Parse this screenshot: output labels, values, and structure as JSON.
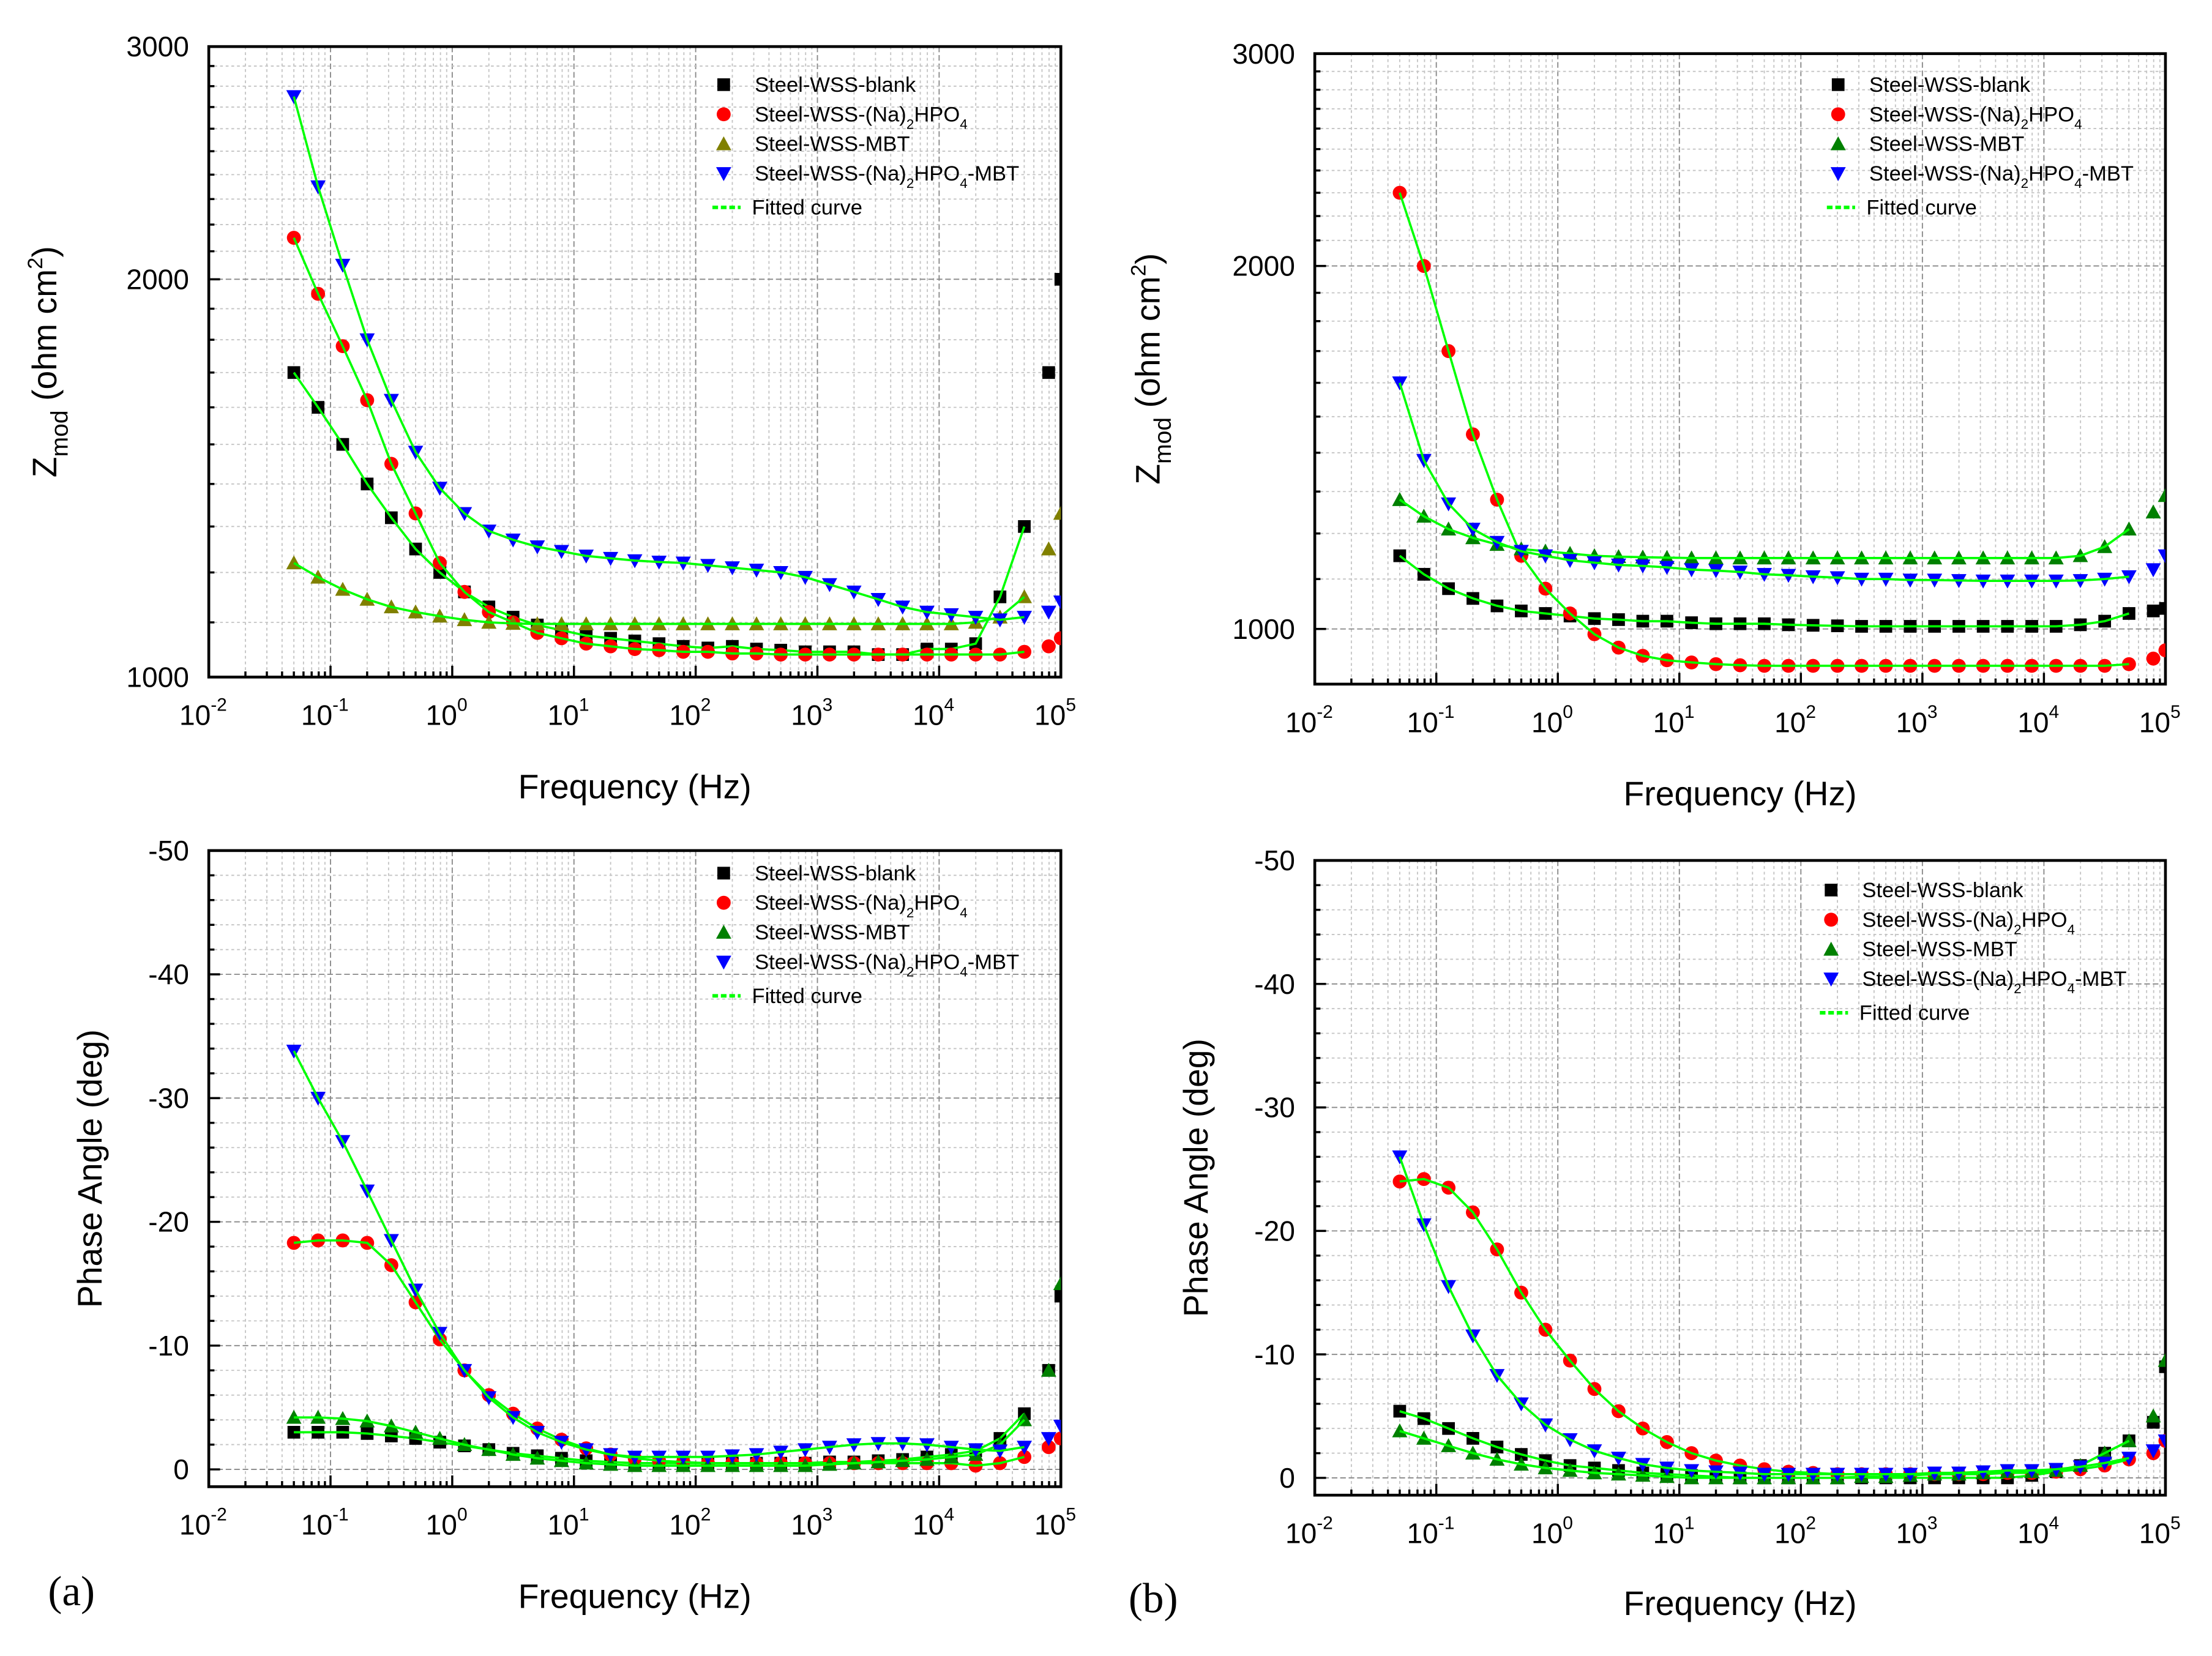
{
  "figure_labels": [
    "(a)",
    "(b)"
  ],
  "colors": {
    "blank": "#000000",
    "hpo4": "#ff0000",
    "mbt_olive": "#808000",
    "mbt_green": "#008000",
    "hpo4_mbt": "#0000ff",
    "fit": "#00ff00"
  },
  "chart_data": [
    {
      "id": "a-impedance",
      "type": "scatter",
      "xscale": "log",
      "yscale": "log",
      "xlabel": "Frequency (Hz)",
      "ylabel_parts": [
        "Z",
        "mod",
        " (ohm cm",
        "2",
        ")"
      ],
      "xlim": [
        0.01,
        100000
      ],
      "ylim": [
        1000,
        3000
      ],
      "xtick_exponents": [
        "-2",
        "-1",
        "0",
        "1",
        "2",
        "3",
        "4",
        "5"
      ],
      "ytick_labels": [
        "1000",
        "2000",
        "3000"
      ],
      "grid": true,
      "legend": "top-right",
      "x": [
        0.05,
        0.079,
        0.126,
        0.2,
        0.316,
        0.5,
        0.79,
        1.26,
        2,
        3.16,
        5,
        7.9,
        12.6,
        20,
        31.6,
        50,
        79,
        126,
        200,
        316,
        500,
        794,
        1259,
        1995,
        3162,
        5012,
        7943,
        12589,
        19953,
        31623,
        50119,
        79433,
        100000
      ],
      "series": [
        {
          "name": "Steel-WSS-blank",
          "marker": "square",
          "color": "#000000",
          "values": [
            1700,
            1600,
            1500,
            1400,
            1320,
            1250,
            1200,
            1160,
            1130,
            1110,
            1095,
            1085,
            1075,
            1070,
            1065,
            1060,
            1055,
            1052,
            1055,
            1050,
            1048,
            1045,
            1045,
            1045,
            1040,
            1040,
            1050,
            1050,
            1060,
            1150,
            1300,
            1700,
            2000
          ]
        },
        {
          "name": "Steel-WSS-(Na)2HPO4",
          "marker": "circle",
          "color": "#ff0000",
          "values": [
            2150,
            1950,
            1780,
            1620,
            1450,
            1330,
            1220,
            1160,
            1120,
            1100,
            1080,
            1070,
            1060,
            1055,
            1050,
            1048,
            1045,
            1045,
            1042,
            1042,
            1040,
            1040,
            1040,
            1040,
            1040,
            1040,
            1040,
            1040,
            1040,
            1040,
            1045,
            1055,
            1070
          ]
        },
        {
          "name": "Steel-WSS-MBT",
          "marker": "triangle-up",
          "color": "#808000",
          "values": [
            1220,
            1190,
            1165,
            1145,
            1130,
            1120,
            1112,
            1105,
            1100,
            1098,
            1097,
            1097,
            1097,
            1097,
            1097,
            1097,
            1097,
            1097,
            1097,
            1097,
            1097,
            1097,
            1097,
            1097,
            1097,
            1097,
            1097,
            1097,
            1100,
            1110,
            1150,
            1250,
            1330
          ]
        },
        {
          "name": "Steel-WSS-(Na)2HPO4-MBT",
          "marker": "triangle-down",
          "color": "#0000ff",
          "values": [
            2750,
            2350,
            2050,
            1800,
            1620,
            1480,
            1390,
            1330,
            1290,
            1270,
            1255,
            1245,
            1235,
            1230,
            1225,
            1222,
            1220,
            1215,
            1210,
            1205,
            1200,
            1190,
            1175,
            1160,
            1145,
            1130,
            1120,
            1115,
            1110,
            1105,
            1110,
            1120,
            1140
          ]
        }
      ],
      "fit_label": "Fitted curve"
    },
    {
      "id": "b-impedance",
      "type": "scatter",
      "xscale": "log",
      "yscale": "log",
      "xlabel": "Frequency (Hz)",
      "ylabel_parts": [
        "Z",
        "mod",
        " (ohm cm",
        "2",
        ")"
      ],
      "xlim": [
        0.01,
        100000
      ],
      "ylim": [
        900,
        3000
      ],
      "xtick_exponents": [
        "-2",
        "-1",
        "0",
        "1",
        "2",
        "3",
        "4",
        "5"
      ],
      "ytick_labels": [
        "1000",
        "2000",
        "3000"
      ],
      "grid": true,
      "legend": "top-right",
      "x": [
        0.05,
        0.079,
        0.126,
        0.2,
        0.316,
        0.5,
        0.79,
        1.26,
        2,
        3.16,
        5,
        7.9,
        12.6,
        20,
        31.6,
        50,
        79,
        126,
        200,
        316,
        500,
        794,
        1259,
        1995,
        3162,
        5012,
        7943,
        12589,
        19953,
        31623,
        50119,
        79433,
        100000
      ],
      "series": [
        {
          "name": "Steel-WSS-blank",
          "marker": "square",
          "color": "#000000",
          "values": [
            1150,
            1110,
            1080,
            1060,
            1045,
            1035,
            1030,
            1025,
            1020,
            1018,
            1015,
            1015,
            1012,
            1010,
            1010,
            1010,
            1008,
            1007,
            1006,
            1005,
            1005,
            1005,
            1005,
            1005,
            1005,
            1005,
            1005,
            1005,
            1008,
            1015,
            1030,
            1035,
            1040
          ]
        },
        {
          "name": "Steel-WSS-(Na)2HPO4",
          "marker": "circle",
          "color": "#ff0000",
          "values": [
            2300,
            2000,
            1700,
            1450,
            1280,
            1150,
            1080,
            1030,
            990,
            965,
            950,
            942,
            938,
            935,
            933,
            932,
            932,
            932,
            932,
            932,
            932,
            932,
            932,
            932,
            932,
            932,
            932,
            932,
            932,
            932,
            935,
            945,
            960
          ]
        },
        {
          "name": "Steel-WSS-MBT",
          "marker": "triangle-up",
          "color": "#008000",
          "values": [
            1280,
            1240,
            1210,
            1190,
            1175,
            1165,
            1160,
            1155,
            1150,
            1148,
            1147,
            1146,
            1145,
            1145,
            1145,
            1145,
            1145,
            1145,
            1145,
            1145,
            1145,
            1145,
            1145,
            1145,
            1145,
            1145,
            1145,
            1145,
            1150,
            1170,
            1210,
            1250,
            1290
          ]
        },
        {
          "name": "Steel-WSS-(Na)2HPO4-MBT",
          "marker": "triangle-down",
          "color": "#0000ff",
          "values": [
            1600,
            1380,
            1270,
            1210,
            1180,
            1160,
            1150,
            1140,
            1135,
            1130,
            1128,
            1125,
            1120,
            1118,
            1115,
            1110,
            1108,
            1105,
            1103,
            1100,
            1100,
            1098,
            1098,
            1097,
            1096,
            1096,
            1096,
            1096,
            1097,
            1100,
            1105,
            1120,
            1150
          ]
        }
      ],
      "fit_label": "Fitted curve"
    },
    {
      "id": "a-phase",
      "type": "scatter",
      "xscale": "log",
      "yscale": "linear",
      "xlabel": "Frequency (Hz)",
      "ylabel_parts": [
        "Phase Angle (deg)"
      ],
      "xlim": [
        0.01,
        100000
      ],
      "ylim": [
        1.4,
        -50
      ],
      "xtick_exponents": [
        "-2",
        "-1",
        "0",
        "1",
        "2",
        "3",
        "4",
        "5"
      ],
      "ytick_labels": [
        "0",
        "-10",
        "-20",
        "-30",
        "-40",
        "-50"
      ],
      "grid": true,
      "legend": "top-right",
      "x": [
        0.05,
        0.079,
        0.126,
        0.2,
        0.316,
        0.5,
        0.79,
        1.26,
        2,
        3.16,
        5,
        7.9,
        12.6,
        20,
        31.6,
        50,
        79,
        126,
        200,
        316,
        500,
        794,
        1259,
        1995,
        3162,
        5012,
        7943,
        12589,
        19953,
        31623,
        50119,
        79433,
        100000
      ],
      "series": [
        {
          "name": "Steel-WSS-blank",
          "marker": "square",
          "color": "#000000",
          "values": [
            -3,
            -3,
            -3,
            -2.9,
            -2.7,
            -2.5,
            -2.2,
            -1.9,
            -1.6,
            -1.3,
            -1.1,
            -0.9,
            -0.7,
            -0.6,
            -0.5,
            -0.5,
            -0.5,
            -0.5,
            -0.5,
            -0.5,
            -0.5,
            -0.5,
            -0.6,
            -0.6,
            -0.7,
            -0.8,
            -1,
            -1.2,
            -1.5,
            -2.5,
            -4.5,
            -8,
            -14
          ]
        },
        {
          "name": "Steel-WSS-(Na)2HPO4",
          "marker": "circle",
          "color": "#ff0000",
          "values": [
            -18.3,
            -18.5,
            -18.5,
            -18.3,
            -16.5,
            -13.5,
            -10.5,
            -8,
            -6,
            -4.5,
            -3.3,
            -2.4,
            -1.7,
            -1.2,
            -0.9,
            -0.7,
            -0.6,
            -0.5,
            -0.5,
            -0.5,
            -0.5,
            -0.5,
            -0.5,
            -0.5,
            -0.5,
            -0.5,
            -0.5,
            -0.5,
            -0.3,
            -0.5,
            -1,
            -1.8,
            -2.5
          ]
        },
        {
          "name": "Steel-WSS-MBT",
          "marker": "triangle-up",
          "color": "#008000",
          "values": [
            -4.2,
            -4.2,
            -4.1,
            -3.9,
            -3.5,
            -3,
            -2.5,
            -2,
            -1.6,
            -1.2,
            -0.9,
            -0.7,
            -0.5,
            -0.4,
            -0.3,
            -0.3,
            -0.3,
            -0.3,
            -0.3,
            -0.3,
            -0.3,
            -0.3,
            -0.4,
            -0.5,
            -0.6,
            -0.7,
            -0.8,
            -1,
            -1.2,
            -2,
            -4,
            -8,
            -15
          ]
        },
        {
          "name": "Steel-WSS-(Na)2HPO4-MBT",
          "marker": "triangle-down",
          "color": "#0000ff",
          "values": [
            -33.8,
            -30,
            -26.5,
            -22.5,
            -18.5,
            -14.5,
            -11,
            -8,
            -5.8,
            -4.2,
            -3,
            -2.2,
            -1.6,
            -1.2,
            -1,
            -1,
            -1,
            -1,
            -1.1,
            -1.2,
            -1.4,
            -1.6,
            -1.8,
            -2,
            -2.1,
            -2.1,
            -2,
            -1.8,
            -1.6,
            -1.5,
            -1.8,
            -2.5,
            -3.5
          ]
        }
      ],
      "fit_label": "Fitted curve"
    },
    {
      "id": "b-phase",
      "type": "scatter",
      "xscale": "log",
      "yscale": "linear",
      "xlabel": "Frequency (Hz)",
      "ylabel_parts": [
        "Phase Angle (deg)"
      ],
      "xlim": [
        0.01,
        100000
      ],
      "ylim": [
        1.4,
        -50
      ],
      "xtick_exponents": [
        "-2",
        "-1",
        "0",
        "1",
        "2",
        "3",
        "4",
        "5"
      ],
      "ytick_labels": [
        "0",
        "-10",
        "-20",
        "-30",
        "-40",
        "-50"
      ],
      "grid": true,
      "legend": "top-right",
      "x": [
        0.05,
        0.079,
        0.126,
        0.2,
        0.316,
        0.5,
        0.79,
        1.26,
        2,
        3.16,
        5,
        7.9,
        12.6,
        20,
        31.6,
        50,
        79,
        126,
        200,
        316,
        500,
        794,
        1259,
        1995,
        3162,
        5012,
        7943,
        12589,
        19953,
        31623,
        50119,
        79433,
        100000
      ],
      "series": [
        {
          "name": "Steel-WSS-blank",
          "marker": "square",
          "color": "#000000",
          "values": [
            -5.4,
            -4.8,
            -4,
            -3.2,
            -2.5,
            -1.9,
            -1.4,
            -1,
            -0.8,
            -0.6,
            -0.4,
            -0.3,
            -0.2,
            -0.1,
            0,
            0,
            0,
            0,
            0,
            0,
            0,
            0,
            0,
            0,
            0,
            0,
            -0.2,
            -0.5,
            -1,
            -2,
            -3,
            -4.5,
            -9
          ]
        },
        {
          "name": "Steel-WSS-(Na)2HPO4",
          "marker": "circle",
          "color": "#ff0000",
          "values": [
            -24,
            -24.2,
            -23.5,
            -21.5,
            -18.5,
            -15,
            -12,
            -9.5,
            -7.2,
            -5.4,
            -4,
            -2.9,
            -2,
            -1.4,
            -1,
            -0.7,
            -0.5,
            -0.4,
            -0.3,
            -0.3,
            -0.3,
            -0.3,
            -0.3,
            -0.3,
            -0.3,
            -0.4,
            -0.4,
            -0.5,
            -0.7,
            -1,
            -1.5,
            -2,
            -3
          ]
        },
        {
          "name": "Steel-WSS-MBT",
          "marker": "triangle-up",
          "color": "#008000",
          "values": [
            -3.8,
            -3.2,
            -2.6,
            -2,
            -1.5,
            -1.1,
            -0.8,
            -0.6,
            -0.4,
            -0.3,
            -0.2,
            -0.1,
            0,
            0,
            0,
            0,
            0,
            0,
            0,
            -0.1,
            -0.1,
            -0.2,
            -0.3,
            -0.3,
            -0.4,
            -0.5,
            -0.5,
            -0.6,
            -1,
            -2,
            -3,
            -5,
            -9.5
          ]
        },
        {
          "name": "Steel-WSS-(Na)2HPO4-MBT",
          "marker": "triangle-down",
          "color": "#0000ff",
          "values": [
            -26,
            -20.5,
            -15.5,
            -11.5,
            -8.3,
            -6,
            -4.3,
            -3.1,
            -2.2,
            -1.6,
            -1.1,
            -0.8,
            -0.6,
            -0.5,
            -0.4,
            -0.3,
            -0.3,
            -0.3,
            -0.3,
            -0.3,
            -0.3,
            -0.3,
            -0.4,
            -0.4,
            -0.5,
            -0.6,
            -0.6,
            -0.7,
            -0.9,
            -1.2,
            -1.6,
            -2.2,
            -3
          ]
        }
      ],
      "fit_label": "Fitted curve"
    }
  ]
}
